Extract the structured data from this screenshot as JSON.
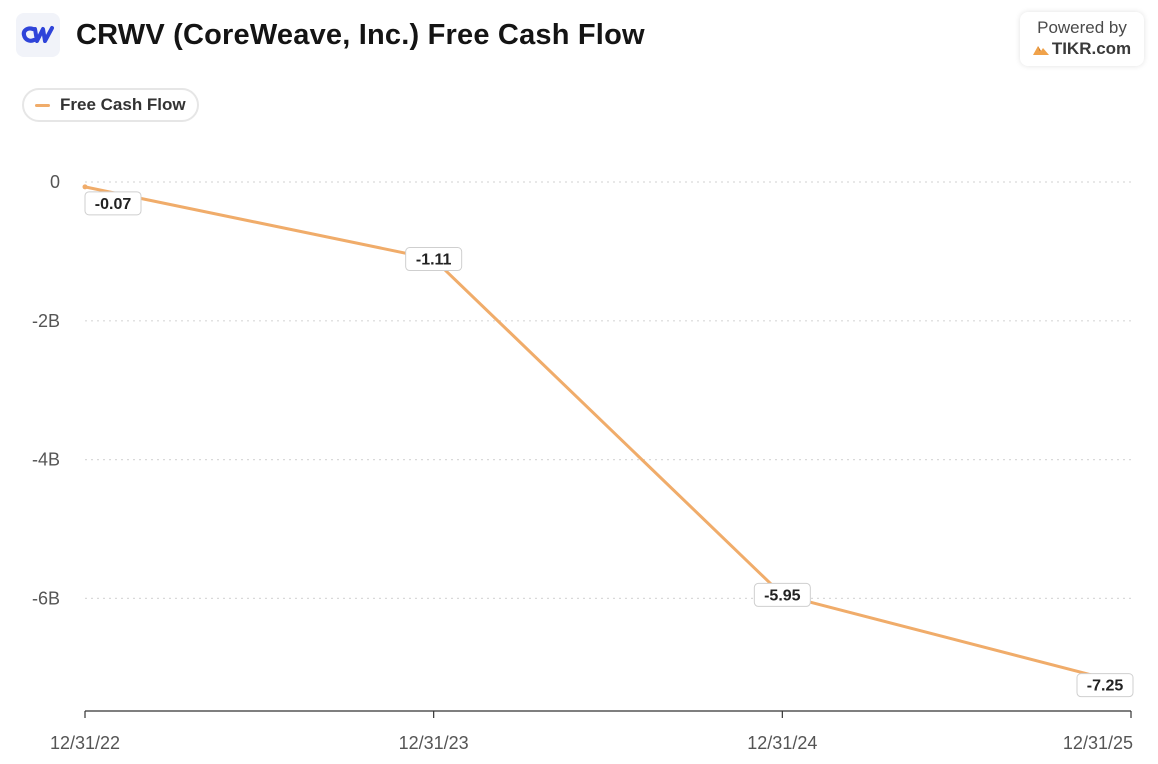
{
  "header": {
    "logo_text": "CW",
    "title": "CRWV (CoreWeave, Inc.) Free Cash Flow"
  },
  "powered": {
    "label": "Powered by",
    "brand": "TIKR.com",
    "brand_icon": "tikr-mountain-icon"
  },
  "colors": {
    "series": "#f0ac6a",
    "grid": "#d9d9d9",
    "axis": "#555555",
    "logo": "#2f44d9"
  },
  "legend": [
    {
      "label": "Free Cash Flow"
    }
  ],
  "chart_data": {
    "type": "line",
    "title": "CRWV (CoreWeave, Inc.) Free Cash Flow",
    "xlabel": "",
    "ylabel": "",
    "categories": [
      "12/31/22",
      "12/31/23",
      "12/31/24",
      "12/31/25"
    ],
    "series": [
      {
        "name": "Free Cash Flow",
        "values": [
          -0.07,
          -1.11,
          -5.95,
          -7.25
        ],
        "labels": [
          "-0.07",
          "-1.11",
          "-5.95",
          "-7.25"
        ]
      }
    ],
    "y_ticks": [
      {
        "value": 0,
        "label": "0"
      },
      {
        "value": -2,
        "label": "-2B"
      },
      {
        "value": -4,
        "label": "-4B"
      },
      {
        "value": -6,
        "label": "-6B"
      }
    ],
    "ylim": [
      -7.5,
      0.1
    ],
    "grid": true,
    "legend_position": "top-left"
  }
}
